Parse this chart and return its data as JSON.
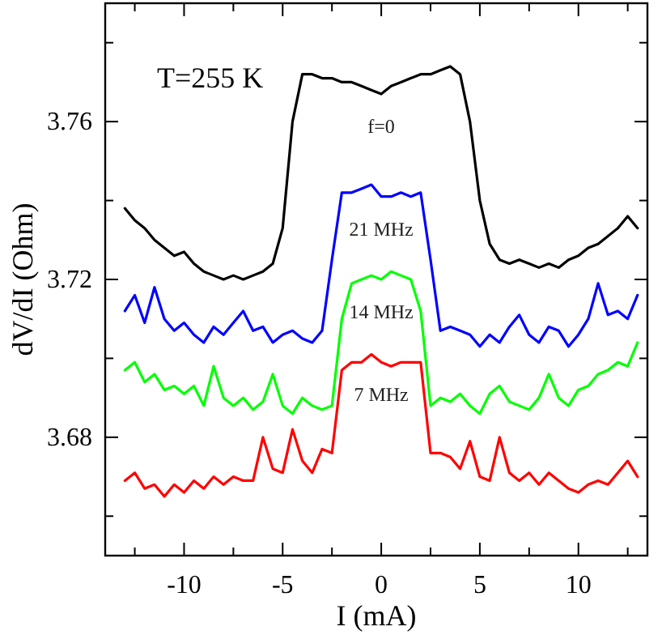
{
  "chart_data": {
    "type": "line",
    "xlabel": "I (mA)",
    "ylabel": "dV/dI (Ohm)",
    "annotations": [
      "T=255 K"
    ],
    "x": [
      -13,
      -12.5,
      -12,
      -11.5,
      -11,
      -10.5,
      -10,
      -9.5,
      -9,
      -8.5,
      -8,
      -7.5,
      -7,
      -6.5,
      -6,
      -5.5,
      -5,
      -4.5,
      -4,
      -3.5,
      -3,
      -2.5,
      -2,
      -1.5,
      -1,
      -0.5,
      0,
      0.5,
      1,
      1.5,
      2,
      2.5,
      3,
      3.5,
      4,
      4.5,
      5,
      5.5,
      6,
      6.5,
      7,
      7.5,
      8,
      8.5,
      9,
      9.5,
      10,
      10.5,
      11,
      11.5,
      12,
      12.5,
      13
    ],
    "series": [
      {
        "name": "f=0",
        "color": "#000000",
        "values": [
          3.738,
          3.735,
          3.733,
          3.73,
          3.728,
          3.726,
          3.727,
          3.724,
          3.722,
          3.721,
          3.72,
          3.721,
          3.72,
          3.721,
          3.722,
          3.724,
          3.733,
          3.76,
          3.772,
          3.772,
          3.771,
          3.771,
          3.77,
          3.77,
          3.769,
          3.768,
          3.767,
          3.769,
          3.77,
          3.771,
          3.772,
          3.772,
          3.773,
          3.774,
          3.772,
          3.76,
          3.74,
          3.729,
          3.725,
          3.724,
          3.725,
          3.724,
          3.723,
          3.724,
          3.723,
          3.725,
          3.726,
          3.728,
          3.729,
          3.731,
          3.733,
          3.736,
          3.733
        ]
      },
      {
        "name": "21 MHz",
        "color": "#0000ff",
        "values": [
          3.712,
          3.716,
          3.709,
          3.718,
          3.71,
          3.707,
          3.709,
          3.706,
          3.704,
          3.708,
          3.706,
          3.709,
          3.712,
          3.707,
          3.708,
          3.704,
          3.706,
          3.707,
          3.705,
          3.704,
          3.707,
          3.725,
          3.742,
          3.742,
          3.743,
          3.744,
          3.741,
          3.741,
          3.742,
          3.741,
          3.742,
          3.725,
          3.707,
          3.708,
          3.707,
          3.706,
          3.703,
          3.706,
          3.704,
          3.708,
          3.711,
          3.706,
          3.704,
          3.708,
          3.707,
          3.703,
          3.706,
          3.71,
          3.719,
          3.711,
          3.712,
          3.71,
          3.716
        ]
      },
      {
        "name": "14 MHz",
        "color": "#00ff00",
        "values": [
          3.697,
          3.699,
          3.694,
          3.696,
          3.692,
          3.693,
          3.691,
          3.693,
          3.688,
          3.698,
          3.69,
          3.688,
          3.69,
          3.687,
          3.689,
          3.696,
          3.688,
          3.686,
          3.69,
          3.688,
          3.687,
          3.688,
          3.71,
          3.719,
          3.72,
          3.721,
          3.72,
          3.722,
          3.721,
          3.72,
          3.712,
          3.688,
          3.69,
          3.689,
          3.691,
          3.688,
          3.686,
          3.691,
          3.693,
          3.689,
          3.688,
          3.687,
          3.69,
          3.696,
          3.69,
          3.688,
          3.692,
          3.693,
          3.696,
          3.697,
          3.699,
          3.698,
          3.704
        ]
      },
      {
        "name": "7 MHz",
        "color": "#ff0000",
        "values": [
          3.669,
          3.671,
          3.667,
          3.668,
          3.665,
          3.668,
          3.666,
          3.669,
          3.667,
          3.67,
          3.668,
          3.67,
          3.669,
          3.669,
          3.68,
          3.672,
          3.671,
          3.682,
          3.674,
          3.671,
          3.677,
          3.676,
          3.697,
          3.699,
          3.699,
          3.701,
          3.699,
          3.698,
          3.699,
          3.699,
          3.699,
          3.676,
          3.676,
          3.675,
          3.672,
          3.679,
          3.67,
          3.669,
          3.68,
          3.671,
          3.669,
          3.671,
          3.668,
          3.671,
          3.669,
          3.667,
          3.666,
          3.668,
          3.669,
          3.668,
          3.671,
          3.674,
          3.67
        ]
      }
    ],
    "xlim": [
      -14,
      13.5
    ],
    "xticks": [
      {
        "value": -12.5,
        "label": null
      },
      -10,
      {
        "value": -7.5,
        "label": null
      },
      -5,
      {
        "value": -2.5,
        "label": null
      },
      0,
      {
        "value": 2.5,
        "label": null
      },
      5,
      {
        "value": 7.5,
        "label": null
      },
      10,
      {
        "value": 12.5,
        "label": null
      }
    ],
    "ylim": [
      3.65,
      3.79
    ],
    "yticks": [
      {
        "value": 3.66,
        "label": null
      },
      3.68,
      {
        "value": 3.7,
        "label": null
      },
      3.72,
      {
        "value": 3.74,
        "label": null
      },
      3.76,
      {
        "value": 3.78,
        "label": null
      }
    ],
    "grid": false,
    "marker": "none",
    "line_style": "solid"
  }
}
